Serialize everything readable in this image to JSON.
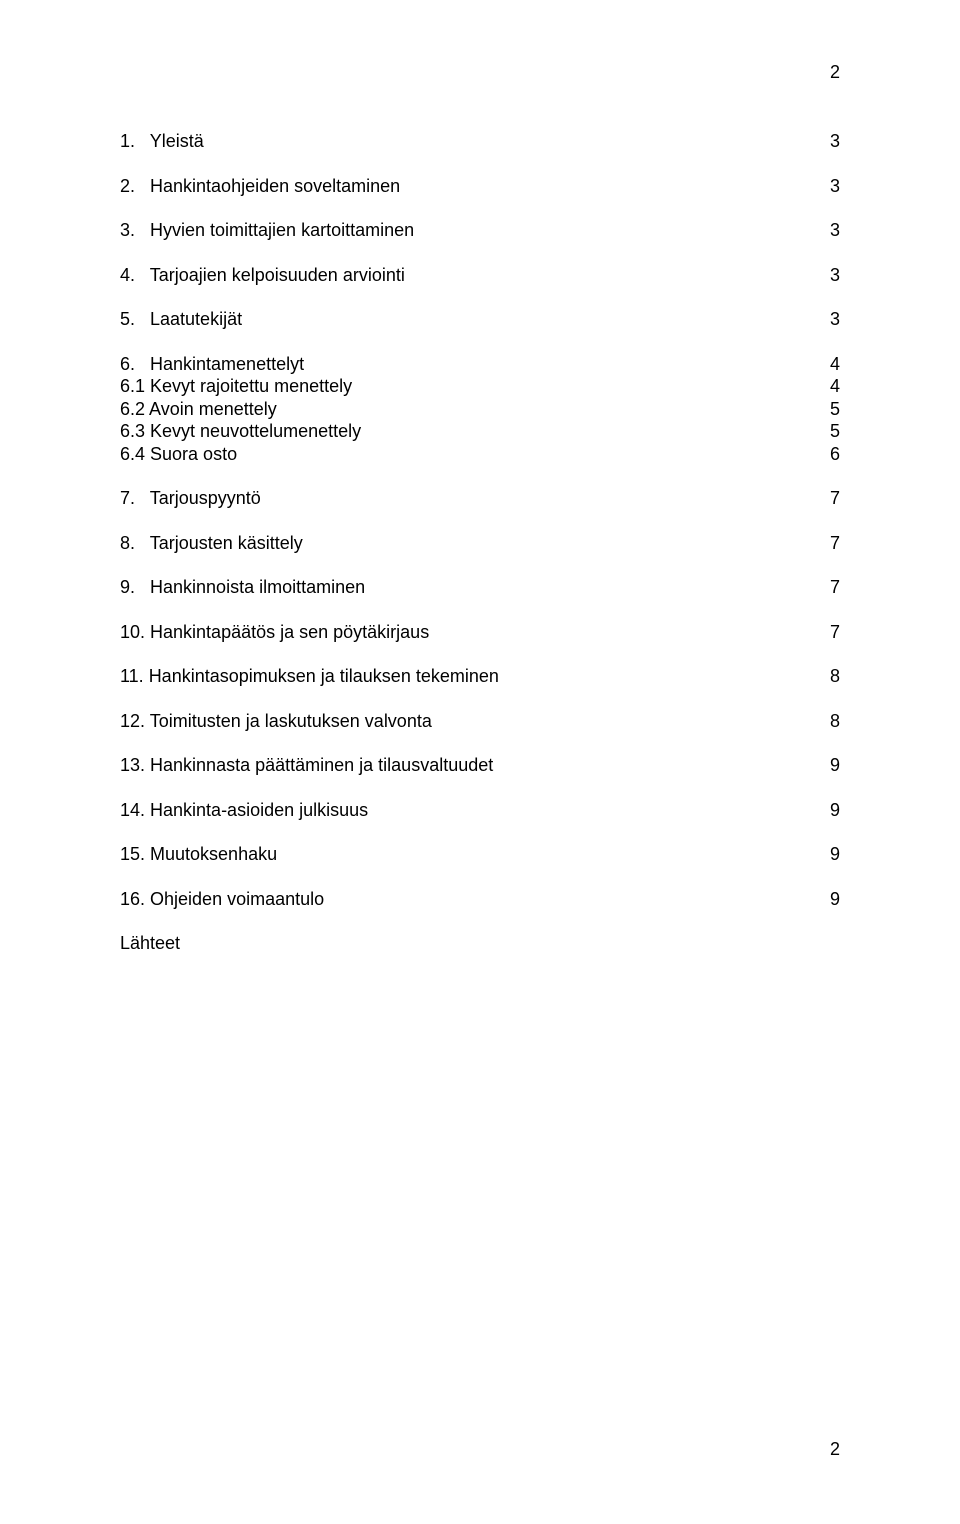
{
  "pageNumberTop": "2",
  "pageNumberBottom": "2",
  "toc": {
    "items": [
      {
        "label": "1.   Yleistä",
        "page": "3"
      },
      {
        "label": "2.   Hankintaohjeiden soveltaminen",
        "page": "3"
      },
      {
        "label": "3.   Hyvien toimittajien kartoittaminen",
        "page": "3"
      },
      {
        "label": "4.   Tarjoajien kelpoisuuden arviointi",
        "page": "3"
      },
      {
        "label": "5.   Laatutekijät",
        "page": "3"
      },
      {
        "label": "6.   Hankintamenettelyt",
        "page": "4",
        "sub": [
          {
            "label": "6.1 Kevyt rajoitettu menettely",
            "page": "4"
          },
          {
            "label": "6.2 Avoin menettely",
            "page": "5"
          },
          {
            "label": "6.3 Kevyt neuvottelumenettely",
            "page": "5"
          },
          {
            "label": "6.4 Suora osto",
            "page": "6"
          }
        ]
      },
      {
        "label": "7.   Tarjouspyyntö",
        "page": "7"
      },
      {
        "label": "8.   Tarjousten käsittely",
        "page": "7"
      },
      {
        "label": "9.   Hankinnoista ilmoittaminen",
        "page": "7"
      },
      {
        "label": "10. Hankintapäätös ja sen pöytäkirjaus",
        "page": "7"
      },
      {
        "label": "11. Hankintasopimuksen ja tilauksen tekeminen",
        "page": "8"
      },
      {
        "label": "12. Toimitusten ja laskutuksen valvonta",
        "page": "8"
      },
      {
        "label": "13. Hankinnasta päättäminen ja tilausvaltuudet",
        "page": "9"
      },
      {
        "label": "14. Hankinta-asioiden julkisuus",
        "page": "9"
      },
      {
        "label": "15. Muutoksenhaku",
        "page": "9"
      },
      {
        "label": "16. Ohjeiden voimaantulo",
        "page": "9"
      }
    ],
    "lahteet": "Lähteet"
  }
}
